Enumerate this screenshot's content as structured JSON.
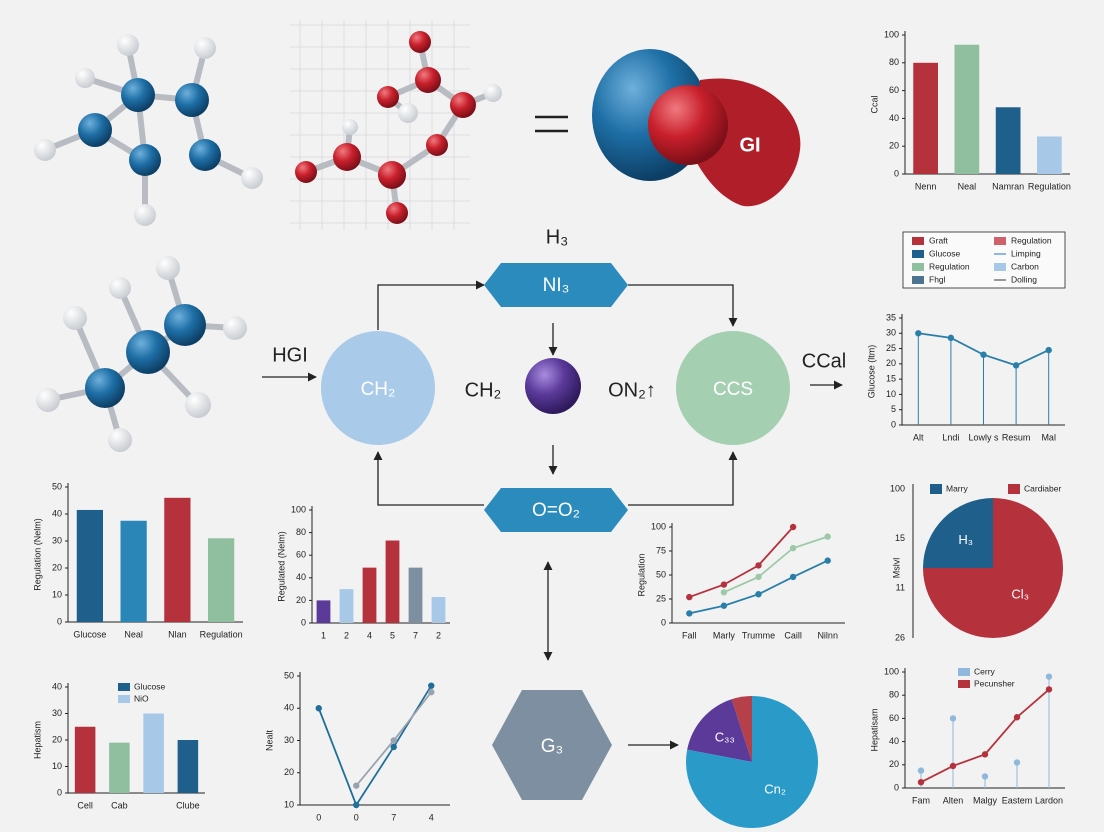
{
  "diagram": {
    "hgi_input": "HGI",
    "top_formula": "H₃",
    "node_top": "NI₃",
    "node_left": "CH₂",
    "center_left": "CH₂",
    "center_right": "ON₂↑",
    "node_right": "CCS",
    "output": "CCal",
    "node_bottom": "O=O₂",
    "node_lower": "G₃",
    "shape_label": "GI",
    "legend": [
      {
        "name": "Graft",
        "color": "#b5323d",
        "kind": "box"
      },
      {
        "name": "Glucose",
        "color": "#1f5f8b",
        "kind": "box"
      },
      {
        "name": "Regulation",
        "color": "#8fbf9f",
        "kind": "box"
      },
      {
        "name": "Fhgl",
        "color": "#4d7390",
        "kind": "box"
      },
      {
        "name": "Regulation",
        "color": "#d0606a",
        "kind": "box"
      },
      {
        "name": "Limping",
        "color": "#8fb8dc",
        "kind": "line"
      },
      {
        "name": "Carbon",
        "color": "#a8c8e8",
        "kind": "box"
      },
      {
        "name": "Dolling",
        "color": "#999999",
        "kind": "line"
      }
    ]
  },
  "chart_data": [
    {
      "type": "bar",
      "categories": [
        "Nenn",
        "Neal",
        "Namran",
        "Regulation"
      ],
      "values": [
        80,
        93,
        48,
        27
      ],
      "colors": [
        "#b5323d",
        "#8fbf9f",
        "#1f5f8b",
        "#a8c8e8"
      ],
      "ylim": [
        0,
        100
      ],
      "yticks": [
        0,
        20,
        40,
        60,
        80,
        100
      ],
      "y_label": "Ccal"
    },
    {
      "type": "line",
      "categories": [
        "Alt",
        "Lndi",
        "Lowly s",
        "Resum",
        "Mal"
      ],
      "series": [
        {
          "color": "#2a7fa8",
          "values": [
            30,
            28.5,
            23,
            19.5,
            24.5
          ]
        }
      ],
      "stems": true,
      "ylim": [
        0,
        35
      ],
      "yticks": [
        0,
        5,
        10,
        15,
        20,
        25,
        30,
        35
      ],
      "y_label": "Glucose (ltm)"
    },
    {
      "type": "pie",
      "categories": [
        "Marry",
        "Cardiaber"
      ],
      "values": [
        25,
        75
      ],
      "colors": [
        "#1f5f8b",
        "#b5323d"
      ],
      "labels": [
        "H₃",
        "Cl₃"
      ],
      "side_labels": [
        "100",
        "15",
        "11",
        "26"
      ],
      "y_label": "Mslvl"
    },
    {
      "type": "line",
      "categories": [
        "Fam",
        "Alten",
        "Malgy",
        "Eastem",
        "Lardon"
      ],
      "series": [
        {
          "name": "Cerry",
          "color": "#8fb8dc",
          "style": "stem",
          "values": [
            15,
            60,
            10,
            22,
            96
          ]
        },
        {
          "name": "Pecunsher",
          "color": "#b5323d",
          "values": [
            5,
            19,
            29,
            61,
            85
          ]
        }
      ],
      "ylim": [
        0,
        100
      ],
      "yticks": [
        0,
        20,
        40,
        60,
        80,
        100
      ],
      "y_label": "Hepatisam"
    },
    {
      "type": "bar",
      "categories": [
        "Glucose",
        "Neal",
        "Nlan",
        "Regulation"
      ],
      "values": [
        41.5,
        37.5,
        46,
        31
      ],
      "colors": [
        "#1f5f8b",
        "#2b86b8",
        "#b5323d",
        "#8fbf9f"
      ],
      "ylim": [
        0,
        50
      ],
      "yticks": [
        0,
        10,
        20,
        30,
        40,
        50
      ],
      "y_label": "Regulation (Nelm)"
    },
    {
      "type": "bar",
      "categories": [
        "1",
        "2",
        "4",
        "5",
        "7",
        "2"
      ],
      "values": [
        20,
        30,
        49,
        73,
        49,
        23
      ],
      "colors": [
        "#5b3a9a",
        "#a8c8e8",
        "#b5323d",
        "#b5323d",
        "#7d8fa0",
        "#a8c8e8"
      ],
      "ylim": [
        0,
        100
      ],
      "yticks": [
        0,
        20,
        40,
        60,
        80,
        100
      ],
      "y_label": "Regulated (Nelm)"
    },
    {
      "type": "line",
      "categories": [
        "Fall",
        "Marly",
        "Trumme",
        "Caill",
        "Nilnn"
      ],
      "series": [
        {
          "color": "#b5323d",
          "values": [
            27,
            40,
            60,
            100,
            null
          ]
        },
        {
          "color": "#9cc9a8",
          "values": [
            null,
            32,
            48,
            78,
            90
          ]
        },
        {
          "color": "#2a7fa8",
          "values": [
            10,
            18,
            30,
            48,
            65
          ]
        }
      ],
      "ylim": [
        0,
        100
      ],
      "yticks": [
        0,
        25,
        50,
        75,
        100
      ],
      "y_label": "Regulation"
    },
    {
      "type": "bar",
      "categories": [
        "Cell",
        "Cab",
        null,
        "Clube"
      ],
      "values": [
        25,
        19,
        30,
        20
      ],
      "colors": [
        "#b5323d",
        "#8fbf9f",
        "#a8c8e8",
        "#1f5f8b"
      ],
      "legend": [
        {
          "name": "Glucose",
          "color": "#1f5f8b"
        },
        {
          "name": "NiO",
          "color": "#a8c8e8"
        }
      ],
      "ylim": [
        0,
        40
      ],
      "yticks": [
        0,
        10,
        20,
        30,
        40
      ],
      "y_label": "Hepatism"
    },
    {
      "type": "line",
      "categories": [
        "0",
        "0",
        "7",
        "4"
      ],
      "series": [
        {
          "color": "#1f6f9a",
          "values": [
            40,
            10,
            28,
            47
          ]
        },
        {
          "color": "#9aa3ad",
          "values": [
            null,
            16,
            30,
            45
          ]
        }
      ],
      "ylim": [
        10,
        50
      ],
      "yticks": [
        10,
        20,
        30,
        40,
        50
      ],
      "y_label": "Nealt"
    },
    {
      "type": "pie",
      "values": [
        5,
        17,
        78
      ],
      "colors": [
        "#b5404a",
        "#5b3a9a",
        "#2a9bc8"
      ],
      "labels": [
        null,
        "C₃₃",
        "Cn₂"
      ]
    }
  ]
}
